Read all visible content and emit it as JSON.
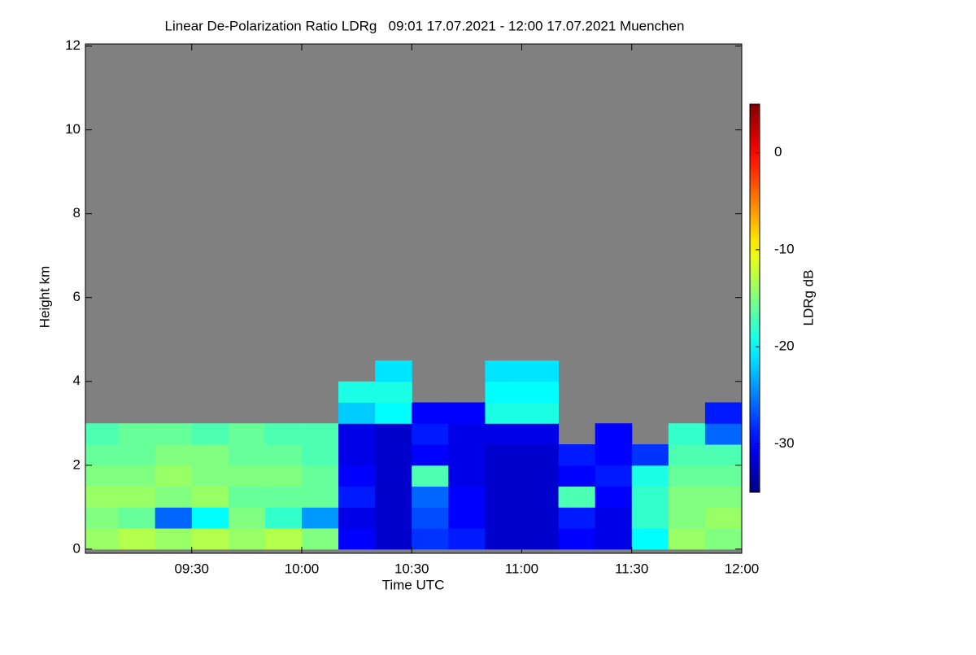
{
  "chart_data": {
    "type": "heatmap",
    "title": "Linear De-Polarization Ratio LDRg   09:01 17.07.2021 - 12:00 17.07.2021 Muenchen",
    "xlabel": "Time UTC",
    "ylabel": "Height km",
    "colorbar_label": "LDRg dB",
    "xlim": [
      541,
      720
    ],
    "xticks": [
      {
        "value": 570,
        "label": "09:30"
      },
      {
        "value": 600,
        "label": "10:00"
      },
      {
        "value": 630,
        "label": "10:30"
      },
      {
        "value": 660,
        "label": "11:00"
      },
      {
        "value": 690,
        "label": "11:30"
      },
      {
        "value": 720,
        "label": "12:00"
      }
    ],
    "ylim": [
      -0.1,
      12.05
    ],
    "yticks": [
      0,
      2,
      4,
      6,
      8,
      10,
      12
    ],
    "zlim": [
      -35,
      5
    ],
    "zticks": [
      0,
      -10,
      -20,
      -30
    ],
    "colormap": "jet",
    "background": "#808080",
    "x_bins": [
      541,
      550,
      560,
      570,
      580,
      590,
      600,
      610,
      620,
      630,
      640,
      650,
      660,
      670,
      680,
      690,
      700,
      710,
      720
    ],
    "y_bins": [
      0,
      0.5,
      1,
      1.5,
      2,
      2.5,
      3,
      3.5,
      4,
      4.5
    ],
    "z": [
      [
        -14,
        -13,
        -14,
        -13,
        -14,
        -13,
        -15,
        -30,
        -32,
        -28,
        -29,
        -32,
        -32,
        -30,
        -31,
        -20,
        -14,
        -15
      ],
      [
        -15,
        -16,
        -26,
        -20,
        -15,
        -18,
        -24,
        -31,
        -32,
        -27,
        -30,
        -32,
        -32,
        -29,
        -31,
        -18,
        -15,
        -14
      ],
      [
        -14,
        -14,
        -15,
        -14,
        -16,
        -16,
        -16,
        -29,
        -32,
        -26,
        -30,
        -32,
        -32,
        -17,
        -30,
        -18,
        -15,
        -15
      ],
      [
        -15,
        -15,
        -14,
        -15,
        -15,
        -15,
        -16,
        -30,
        -32,
        -17,
        -31,
        -32,
        -32,
        -30,
        -29,
        -19,
        -16,
        -16
      ],
      [
        -16,
        -16,
        -15,
        -15,
        -16,
        -16,
        -17,
        -31,
        -32,
        -30,
        -31,
        -32,
        -32,
        -29,
        -30,
        -28,
        -17,
        -17
      ],
      [
        -17,
        -16,
        -16,
        -17,
        -16,
        -17,
        -17,
        -31,
        -32,
        -29,
        -31,
        -31,
        -31,
        null,
        -30,
        null,
        -18,
        -26
      ],
      [
        null,
        null,
        null,
        null,
        null,
        null,
        null,
        -22,
        -20,
        -30,
        -30,
        -19,
        -19,
        null,
        null,
        null,
        null,
        -29
      ],
      [
        null,
        null,
        null,
        null,
        null,
        null,
        null,
        -19,
        -19,
        null,
        null,
        -20,
        -20,
        null,
        null,
        null,
        null,
        null
      ],
      [
        null,
        null,
        null,
        null,
        null,
        null,
        null,
        null,
        -21,
        null,
        null,
        -21,
        -21,
        null,
        null,
        null,
        null,
        null
      ]
    ]
  }
}
